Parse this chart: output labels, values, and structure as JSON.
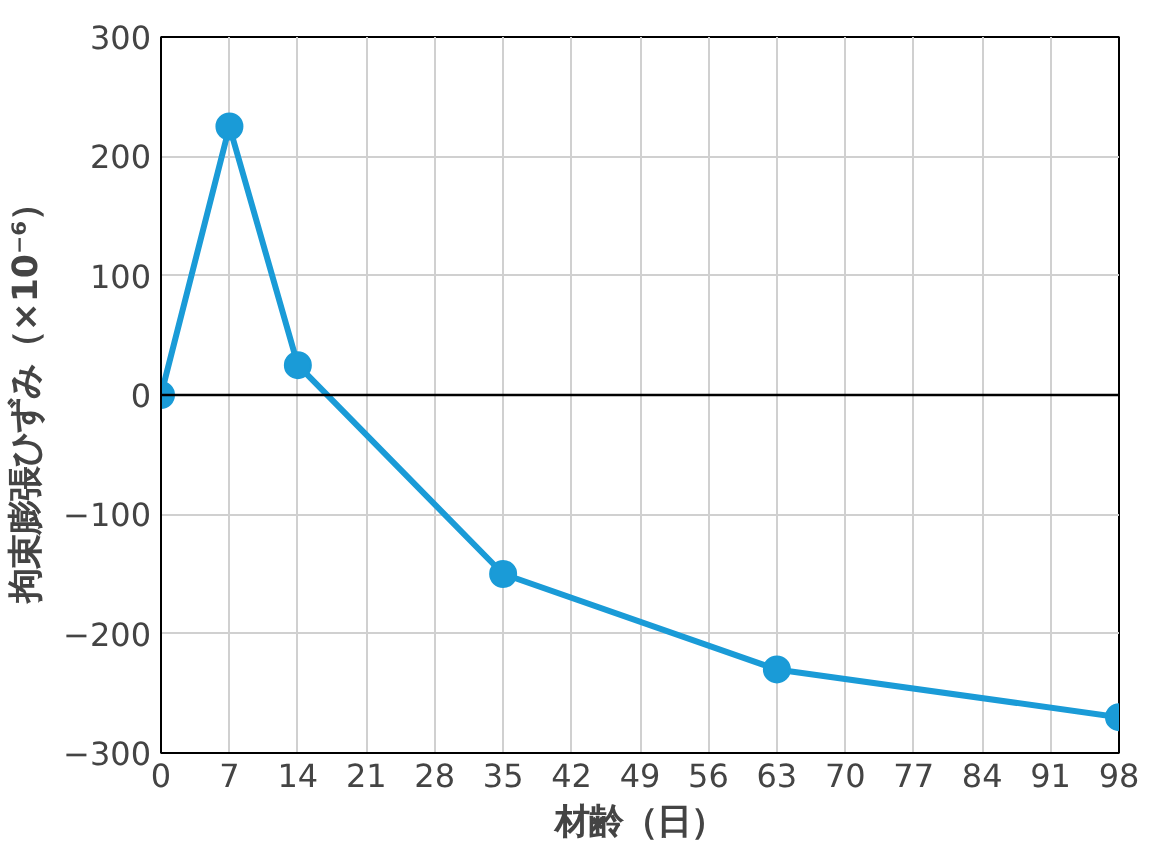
{
  "chart_data": {
    "type": "line",
    "xlabel": "材齢（日）",
    "ylabel": "拘束膨張ひずみ（×10⁻⁶）",
    "x": [
      0,
      7,
      14,
      35,
      63,
      98
    ],
    "series": [
      {
        "color": "#1a9bd7",
        "values": [
          0,
          225,
          25,
          -150,
          -230,
          -270
        ]
      }
    ],
    "xlim": [
      0,
      98
    ],
    "xticks": [
      0,
      7,
      14,
      21,
      28,
      35,
      42,
      49,
      56,
      63,
      70,
      77,
      84,
      91,
      98
    ],
    "ylim": [
      -300,
      300
    ],
    "yticks": [
      -300,
      -200,
      -100,
      0,
      100,
      200,
      300
    ],
    "grid": true,
    "marker": "circle",
    "line_style": "solid",
    "ref_lines": [
      {
        "axis": "y",
        "value": 0,
        "color": "#000000"
      }
    ]
  }
}
